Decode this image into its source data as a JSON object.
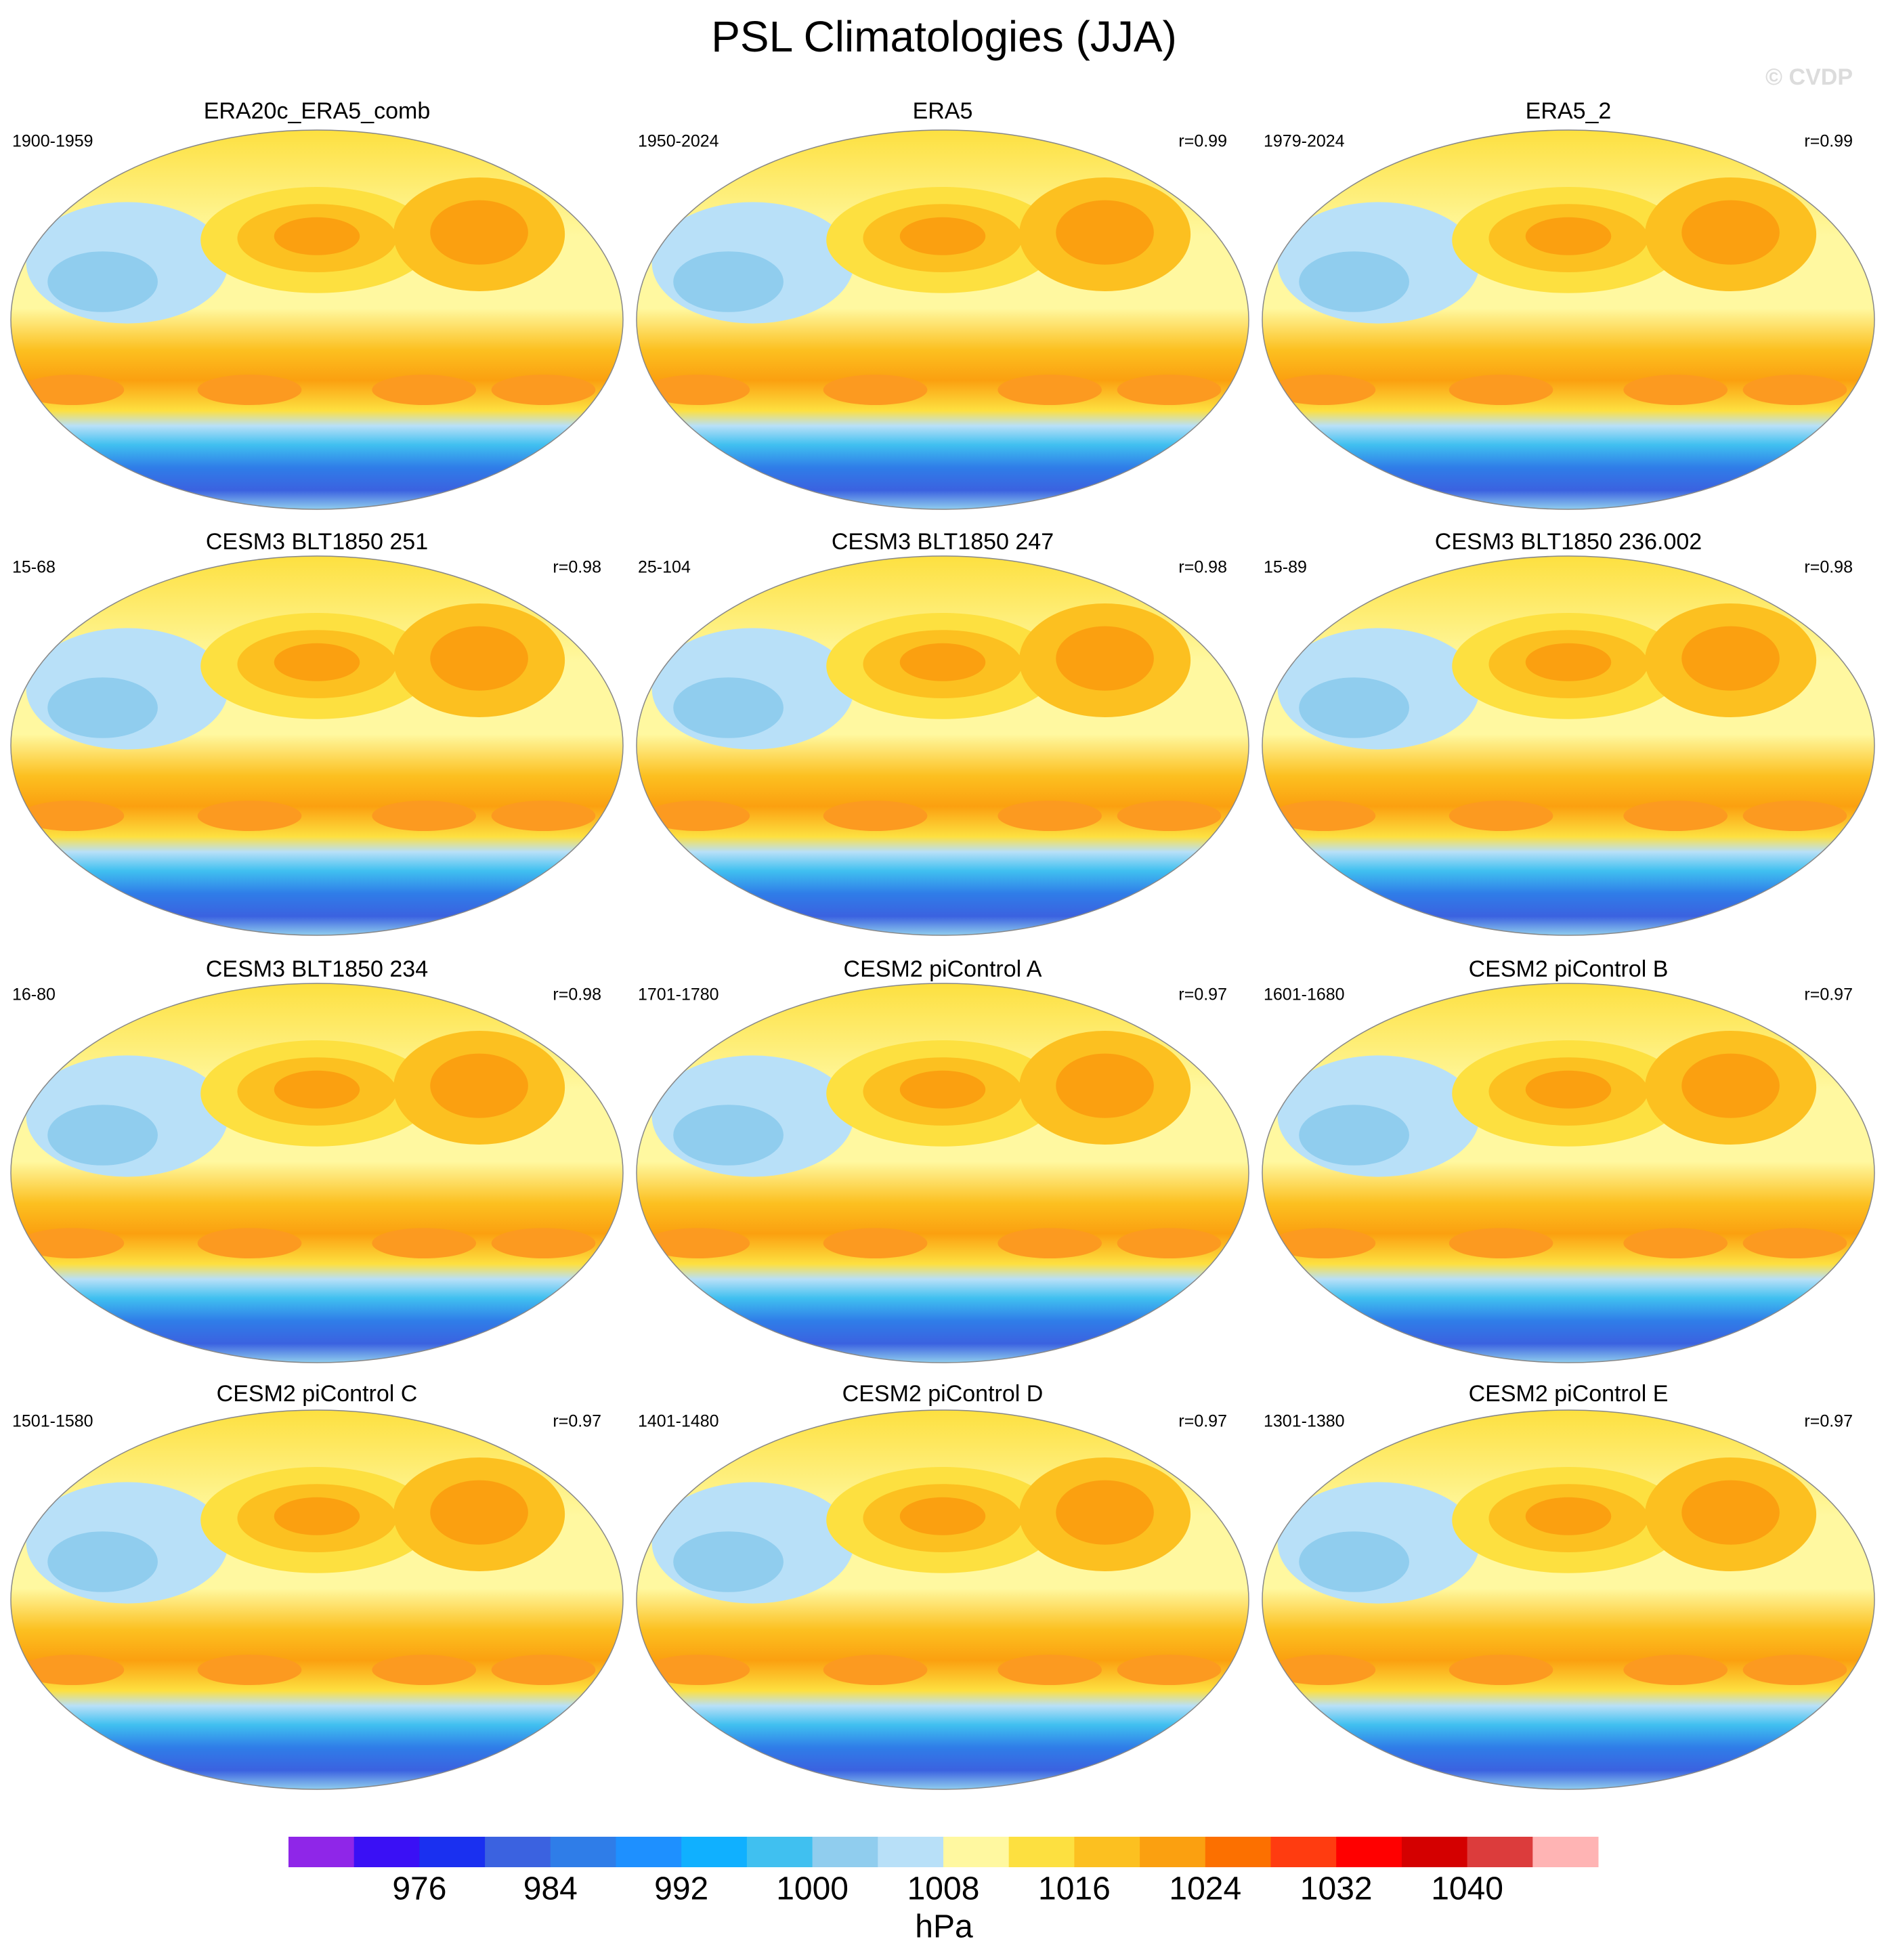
{
  "chart_data": {
    "type": "map",
    "title": "PSL Climatologies (JJA)",
    "watermark": "© CVDP",
    "panels": [
      {
        "title": "ERA20c_ERA5_comb",
        "period": "1900-1959"
      },
      {
        "title": "ERA5",
        "period": "1950-2024",
        "r": "r=0.99"
      },
      {
        "title": "ERA5_2",
        "period": "1979-2024",
        "r": "r=0.99"
      },
      {
        "title": "CESM3 BLT1850 251",
        "period": "15-68",
        "r": "r=0.98"
      },
      {
        "title": "CESM3 BLT1850 247",
        "period": "25-104",
        "r": "r=0.98"
      },
      {
        "title": "CESM3 BLT1850 236.002",
        "period": "15-89",
        "r": "r=0.98"
      },
      {
        "title": "CESM3 BLT1850 234",
        "period": "16-80",
        "r": "r=0.98"
      },
      {
        "title": "CESM2 piControl A",
        "period": "1701-1780",
        "r": "r=0.97"
      },
      {
        "title": "CESM2 piControl B",
        "period": "1601-1680",
        "r": "r=0.97"
      },
      {
        "title": "CESM2 piControl C",
        "period": "1501-1580",
        "r": "r=0.97"
      },
      {
        "title": "CESM2 piControl D",
        "period": "1401-1480",
        "r": "r=0.97"
      },
      {
        "title": "CESM2 piControl E",
        "period": "1301-1380",
        "r": "r=0.97"
      }
    ],
    "colorbar": {
      "label": "hPa",
      "lim": [
        968,
        1048
      ],
      "ticks": [
        976,
        984,
        992,
        1000,
        1008,
        1016,
        1024,
        1032,
        1040
      ],
      "colors": [
        "#8f26e8",
        "#3a10f5",
        "#1a30f0",
        "#3b62e0",
        "#2f7de8",
        "#1e90ff",
        "#10b0ff",
        "#40c0f0",
        "#90cdee",
        "#b8e0f8",
        "#fff8a0",
        "#fde040",
        "#fcc020",
        "#fba010",
        "#fc7000",
        "#ff3c10",
        "#ff0000",
        "#d40000",
        "#dc3c3c",
        "#ffb4b4"
      ]
    }
  }
}
